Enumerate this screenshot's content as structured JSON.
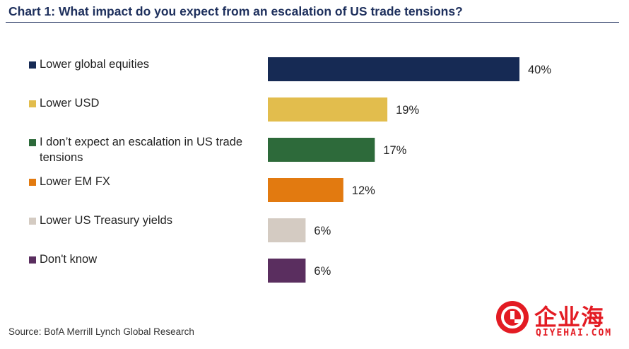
{
  "chart_data": {
    "type": "bar",
    "orientation": "horizontal",
    "title": "Chart 1: What impact do you expect from an escalation of US trade tensions?",
    "categories": [
      "Lower global equities",
      "Lower USD",
      "I don’t expect an escalation in US trade tensions",
      "Lower EM FX",
      "Lower US Treasury yields",
      "Don't know"
    ],
    "values": [
      40,
      19,
      17,
      12,
      6,
      6
    ],
    "value_labels": [
      "40%",
      "19%",
      "17%",
      "12%",
      "6%",
      "6%"
    ],
    "colors": [
      "#162a54",
      "#e2bd4d",
      "#2d6a3a",
      "#e27a10",
      "#d4cbc2",
      "#5a2e5f"
    ],
    "unit": "%",
    "xlim": [
      0,
      40
    ],
    "grid": false,
    "legend_placement": "left"
  },
  "source": "Source: BofA Merrill Lynch Global Research",
  "watermark": {
    "brand": "企业海",
    "domain": "QIYEHAI.COM",
    "icon": "qiyehai-logo-icon",
    "color": "#e31b23"
  }
}
